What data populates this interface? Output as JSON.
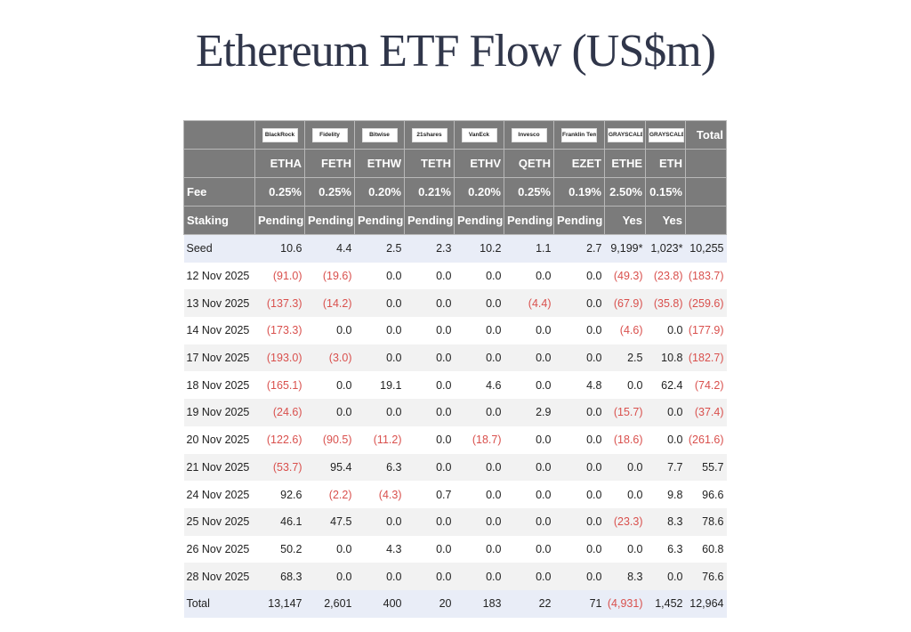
{
  "title": "Ethereum ETF Flow (US$m)",
  "issuers": [
    "BlackRock",
    "Fidelity",
    "Bitwise",
    "21shares",
    "VanEck",
    "Invesco",
    "Franklin Templeton",
    "GRAYSCALE",
    "GRAYSCALE"
  ],
  "total_label": "Total",
  "tickers": [
    "ETHA",
    "FETH",
    "ETHW",
    "TETH",
    "ETHV",
    "QETH",
    "EZET",
    "ETHE",
    "ETH"
  ],
  "fee_label": "Fee",
  "fees": [
    "0.25%",
    "0.25%",
    "0.20%",
    "0.21%",
    "0.20%",
    "0.25%",
    "0.19%",
    "2.50%",
    "0.15%"
  ],
  "staking_label": "Staking",
  "staking": [
    "Pending",
    "Pending",
    "Pending",
    "Pending",
    "Pending",
    "Pending",
    "Pending",
    "Yes",
    "Yes"
  ],
  "rows": [
    {
      "label": "Seed",
      "values": [
        "10.6",
        "4.4",
        "2.5",
        "2.3",
        "10.2",
        "1.1",
        "2.7",
        "9,199*",
        "1,023*",
        "10,255"
      ]
    },
    {
      "label": "12 Nov 2025",
      "values": [
        "(91.0)",
        "(19.6)",
        "0.0",
        "0.0",
        "0.0",
        "0.0",
        "0.0",
        "(49.3)",
        "(23.8)",
        "(183.7)"
      ]
    },
    {
      "label": "13 Nov 2025",
      "values": [
        "(137.3)",
        "(14.2)",
        "0.0",
        "0.0",
        "0.0",
        "(4.4)",
        "0.0",
        "(67.9)",
        "(35.8)",
        "(259.6)"
      ]
    },
    {
      "label": "14 Nov 2025",
      "values": [
        "(173.3)",
        "0.0",
        "0.0",
        "0.0",
        "0.0",
        "0.0",
        "0.0",
        "(4.6)",
        "0.0",
        "(177.9)"
      ]
    },
    {
      "label": "17 Nov 2025",
      "values": [
        "(193.0)",
        "(3.0)",
        "0.0",
        "0.0",
        "0.0",
        "0.0",
        "0.0",
        "2.5",
        "10.8",
        "(182.7)"
      ]
    },
    {
      "label": "18 Nov 2025",
      "values": [
        "(165.1)",
        "0.0",
        "19.1",
        "0.0",
        "4.6",
        "0.0",
        "4.8",
        "0.0",
        "62.4",
        "(74.2)"
      ]
    },
    {
      "label": "19 Nov 2025",
      "values": [
        "(24.6)",
        "0.0",
        "0.0",
        "0.0",
        "0.0",
        "2.9",
        "0.0",
        "(15.7)",
        "0.0",
        "(37.4)"
      ]
    },
    {
      "label": "20 Nov 2025",
      "values": [
        "(122.6)",
        "(90.5)",
        "(11.2)",
        "0.0",
        "(18.7)",
        "0.0",
        "0.0",
        "(18.6)",
        "0.0",
        "(261.6)"
      ]
    },
    {
      "label": "21 Nov 2025",
      "values": [
        "(53.7)",
        "95.4",
        "6.3",
        "0.0",
        "0.0",
        "0.0",
        "0.0",
        "0.0",
        "7.7",
        "55.7"
      ]
    },
    {
      "label": "24 Nov 2025",
      "values": [
        "92.6",
        "(2.2)",
        "(4.3)",
        "0.7",
        "0.0",
        "0.0",
        "0.0",
        "0.0",
        "9.8",
        "96.6"
      ]
    },
    {
      "label": "25 Nov 2025",
      "values": [
        "46.1",
        "47.5",
        "0.0",
        "0.0",
        "0.0",
        "0.0",
        "0.0",
        "(23.3)",
        "8.3",
        "78.6"
      ]
    },
    {
      "label": "26 Nov 2025",
      "values": [
        "50.2",
        "0.0",
        "4.3",
        "0.0",
        "0.0",
        "0.0",
        "0.0",
        "0.0",
        "6.3",
        "60.8"
      ]
    },
    {
      "label": "28 Nov 2025",
      "values": [
        "68.3",
        "0.0",
        "0.0",
        "0.0",
        "0.0",
        "0.0",
        "0.0",
        "8.3",
        "0.0",
        "76.6"
      ]
    },
    {
      "label": "Total",
      "values": [
        "13,147",
        "2,601",
        "400",
        "20",
        "183",
        "22",
        "71",
        "(4,931)",
        "1,452",
        "12,964"
      ]
    }
  ],
  "colors": {
    "header_bg": "#7b7b7b",
    "negative": "#d9504d",
    "highlight_row": "#e9edf7",
    "stripe": "#f2f2f2",
    "title": "#30364a"
  }
}
